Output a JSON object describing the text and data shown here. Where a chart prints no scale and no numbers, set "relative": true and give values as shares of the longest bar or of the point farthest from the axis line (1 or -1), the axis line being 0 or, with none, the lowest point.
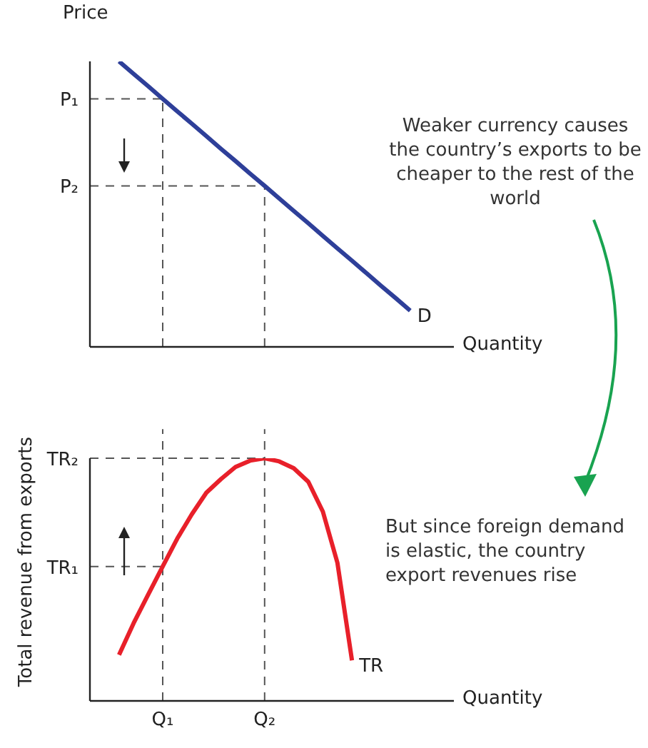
{
  "chart_data": [
    {
      "type": "line",
      "relative": true,
      "ylabel": "Price",
      "xlabel": "Quantity",
      "tick_labels": false,
      "categories": [
        null,
        null,
        null,
        null,
        null,
        "Q₁",
        null,
        null,
        null,
        null,
        null,
        null,
        "Q₂",
        null,
        null,
        null,
        null,
        null,
        null,
        null,
        null,
        null,
        null,
        null,
        null,
        null
      ],
      "series": [
        {
          "name": "D",
          "color": "#2e3f99",
          "values": [
            null,
            null,
            1,
            0.956,
            0.913,
            0.869,
            0.825,
            0.782,
            0.738,
            0.694,
            0.651,
            0.607,
            0.564,
            0.52,
            0.476,
            0.433,
            0.389,
            0.345,
            0.302,
            0.258,
            0.214,
            0.171,
            0.127,
            null,
            null,
            null
          ]
        }
      ],
      "ref_lines": [
        {
          "axis": "y",
          "value": 0.869,
          "label": "P₁",
          "line_style": "dashed",
          "color": "#555555"
        },
        {
          "axis": "y",
          "value": 0.564,
          "label": "P₂",
          "line_style": "dashed",
          "color": "#555555"
        },
        {
          "axis": "x",
          "value": "Q₁",
          "line_style": "dashed",
          "color": "#555555"
        },
        {
          "axis": "x",
          "value": "Q₂",
          "line_style": "dashed",
          "color": "#555555"
        }
      ],
      "annotations": [
        "Weaker currency causes the country’s exports to be cheaper to the rest of the world"
      ]
    },
    {
      "type": "line",
      "relative": true,
      "ylabel": "Total revenue from exports",
      "xlabel": "Quantity",
      "categories": [
        null,
        null,
        null,
        null,
        null,
        "Q₁",
        null,
        null,
        null,
        null,
        null,
        null,
        "Q₂",
        null,
        null,
        null,
        null,
        null,
        null,
        null,
        null,
        null,
        null,
        null,
        null,
        null
      ],
      "series": [
        {
          "name": "TR",
          "color": "#e8202a",
          "values": [
            null,
            null,
            0.19,
            0.32,
            0.438,
            0.554,
            0.669,
            0.769,
            0.858,
            0.914,
            0.964,
            0.99,
            1,
            0.987,
            0.959,
            0.903,
            0.78,
            0.569,
            0.167,
            null,
            null,
            null,
            null,
            null,
            null,
            null
          ]
        }
      ],
      "ref_lines": [
        {
          "axis": "y",
          "value": 0.554,
          "label": "TR₁",
          "line_style": "dashed",
          "color": "#555555"
        },
        {
          "axis": "y",
          "value": 1,
          "label": "TR₂",
          "line_style": "dashed",
          "color": "#555555"
        },
        {
          "axis": "x",
          "value": "Q₁",
          "line_style": "dashed",
          "color": "#555555"
        },
        {
          "axis": "x",
          "value": "Q₂",
          "line_style": "dashed",
          "color": "#555555"
        }
      ],
      "annotations": [
        "But since foreign demand is elastic, the country export revenues rise"
      ]
    }
  ]
}
